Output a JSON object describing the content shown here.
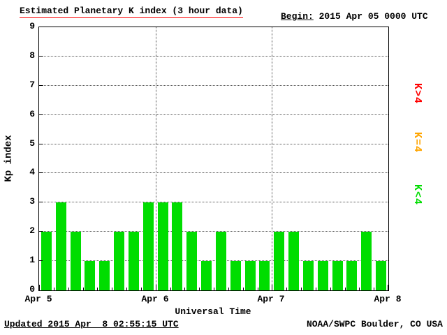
{
  "header": {
    "title": "Estimated Planetary K index (3 hour data)",
    "begin_label": "Begin:",
    "begin_value": " 2015 Apr 05 0000 UTC"
  },
  "axes": {
    "ylabel": "Kp index",
    "xlabel": "Universal Time"
  },
  "legend": {
    "items": [
      {
        "label": "K>4",
        "color": "#ff0000"
      },
      {
        "label": "K=4",
        "color": "#ffa500"
      },
      {
        "label": "K<4",
        "color": "#00dd00"
      }
    ]
  },
  "footer": {
    "updated": "Updated 2015 Apr  8 02:55:15 UTC",
    "source": "NOAA/SWPC Boulder, CO USA"
  },
  "chart_data": {
    "type": "bar",
    "title": "Estimated Planetary K index (3 hour data)",
    "begin": "2015 Apr 05 0000 UTC",
    "xlabel": "Universal Time",
    "ylabel": "Kp index",
    "ylim": [
      0,
      9
    ],
    "y_ticks": [
      0,
      1,
      2,
      3,
      4,
      5,
      6,
      7,
      8,
      9
    ],
    "x_tick_labels": [
      "Apr 5",
      "Apr 6",
      "Apr 7",
      "Apr 8"
    ],
    "x_interval_hours": 3,
    "bar_color": "#00dd00",
    "grid": "dotted horizontal lines at each Kp integer; dotted vertical lines at day boundaries",
    "legend_position": "right",
    "values": [
      2,
      3,
      2,
      1,
      1,
      2,
      2,
      3,
      3,
      3,
      2,
      1,
      2,
      1,
      1,
      1,
      2,
      2,
      1,
      1,
      1,
      1,
      2,
      1
    ]
  }
}
